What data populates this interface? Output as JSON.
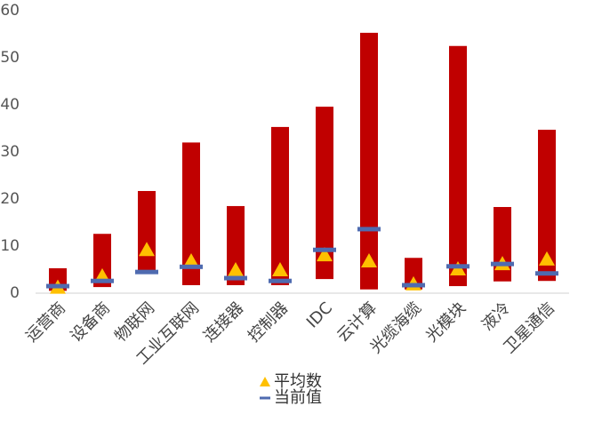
{
  "chart_data": {
    "type": "range-bar",
    "categories": [
      "运营商",
      "设备商",
      "物联网",
      "工业互联网",
      "连接器",
      "控制器",
      "IDC",
      "云计算",
      "光缆海缆",
      "光模块",
      "液冷",
      "卫星通信"
    ],
    "range": {
      "color": "#c00000",
      "low": [
        0.5,
        1.3,
        4.5,
        1.7,
        1.7,
        1.7,
        3,
        0.8,
        0.8,
        1.5,
        2.5,
        2.6
      ],
      "high": [
        5.3,
        12.6,
        21.7,
        32,
        18.5,
        35.3,
        39.6,
        55.3,
        7.5,
        52.5,
        18.3,
        34.7
      ]
    },
    "series": [
      {
        "name": "平均数",
        "marker": "triangle",
        "color": "#ffc000",
        "values": [
          1.2,
          3.6,
          9.2,
          6.8,
          4.9,
          4.9,
          8.1,
          6.8,
          1.9,
          5.1,
          6.2,
          7.2
        ]
      },
      {
        "name": "当前值",
        "marker": "dash",
        "color": "#4f6bb0",
        "values": [
          1.5,
          2.6,
          4.5,
          5.6,
          3.2,
          2.6,
          9.2,
          13.6,
          1.7,
          5.7,
          6.2,
          4.2
        ]
      }
    ],
    "ylim": [
      0,
      60
    ],
    "yticks": [
      0,
      10,
      20,
      30,
      40,
      50,
      60
    ],
    "legend": "bottom"
  }
}
